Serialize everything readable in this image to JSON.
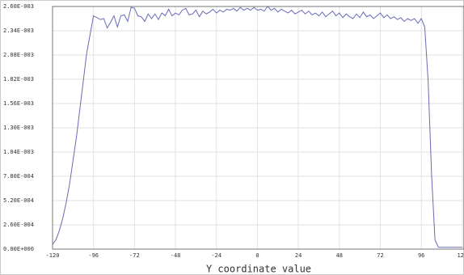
{
  "chart_data": {
    "type": "line",
    "x_label": "Y coordinate value",
    "x": [
      -120,
      -118,
      -116,
      -114,
      -112,
      -110,
      -108,
      -106,
      -104,
      -102,
      -100,
      -98,
      -96,
      -94,
      -92,
      -90,
      -88,
      -86,
      -84,
      -82,
      -80,
      -78,
      -76,
      -74,
      -72,
      -70,
      -68,
      -66,
      -64,
      -62,
      -60,
      -58,
      -56,
      -54,
      -52,
      -50,
      -48,
      -46,
      -44,
      -42,
      -40,
      -38,
      -36,
      -34,
      -32,
      -30,
      -28,
      -26,
      -24,
      -22,
      -20,
      -18,
      -16,
      -14,
      -12,
      -10,
      -8,
      -6,
      -4,
      -2,
      0,
      2,
      4,
      6,
      8,
      10,
      12,
      14,
      16,
      18,
      20,
      22,
      24,
      26,
      28,
      30,
      32,
      34,
      36,
      38,
      40,
      42,
      44,
      46,
      48,
      50,
      52,
      54,
      56,
      58,
      60,
      62,
      64,
      66,
      68,
      70,
      72,
      74,
      76,
      78,
      80,
      82,
      84,
      86,
      88,
      90,
      92,
      94,
      96,
      98,
      100,
      102,
      104,
      106,
      108,
      110,
      112,
      114,
      116,
      118,
      120
    ],
    "values": [
      5e-05,
      0.0001,
      0.0002,
      0.00033,
      0.0005,
      0.0007,
      0.00095,
      0.0012,
      0.0015,
      0.0018,
      0.0021,
      0.0023,
      0.0025,
      0.00248,
      0.00246,
      0.00247,
      0.00237,
      0.00243,
      0.0025,
      0.00238,
      0.0025,
      0.00251,
      0.00244,
      0.00259,
      0.00258,
      0.0025,
      0.00249,
      0.00244,
      0.00252,
      0.00247,
      0.00252,
      0.00246,
      0.00253,
      0.0025,
      0.00257,
      0.0025,
      0.00253,
      0.00251,
      0.00256,
      0.00258,
      0.00251,
      0.00252,
      0.00256,
      0.00249,
      0.00255,
      0.00252,
      0.00254,
      0.00257,
      0.00253,
      0.00256,
      0.00254,
      0.00257,
      0.00256,
      0.00258,
      0.00255,
      0.00259,
      0.00256,
      0.00258,
      0.00256,
      0.00259,
      0.00256,
      0.00257,
      0.00255,
      0.0026,
      0.00256,
      0.00258,
      0.00254,
      0.00257,
      0.00255,
      0.00253,
      0.00256,
      0.00252,
      0.00254,
      0.00256,
      0.00252,
      0.00255,
      0.00251,
      0.00253,
      0.0025,
      0.00254,
      0.00249,
      0.00252,
      0.00255,
      0.0025,
      0.00253,
      0.00248,
      0.00252,
      0.00249,
      0.00247,
      0.00252,
      0.00248,
      0.00254,
      0.00249,
      0.00251,
      0.00247,
      0.0025,
      0.00253,
      0.00248,
      0.00251,
      0.00247,
      0.00249,
      0.00246,
      0.00248,
      0.00244,
      0.00247,
      0.00245,
      0.00247,
      0.00242,
      0.00247,
      0.00238,
      0.0018,
      0.0008,
      0.0001,
      2e-05,
      2e-05,
      2e-05,
      2e-05,
      2e-05,
      2e-05,
      2e-05,
      2e-05
    ],
    "color": "#6a6ab8",
    "xlim": [
      -120,
      121
    ],
    "xticks": [
      -120,
      -96,
      -72,
      -48,
      -24,
      0,
      24,
      48,
      72,
      96,
      120
    ],
    "ylim": [
      0,
      0.0026
    ],
    "yticks": [
      {
        "value": 0,
        "label": "0.00E+000"
      },
      {
        "value": 0.00026,
        "label": "2.60E-004"
      },
      {
        "value": 0.00052,
        "label": "5.20E-004"
      },
      {
        "value": 0.00078,
        "label": "7.80E-004"
      },
      {
        "value": 0.00104,
        "label": "1.04E-003"
      },
      {
        "value": 0.0013,
        "label": "1.30E-003"
      },
      {
        "value": 0.00156,
        "label": "1.56E-003"
      },
      {
        "value": 0.00182,
        "label": "1.82E-003"
      },
      {
        "value": 0.00208,
        "label": "2.08E-003"
      },
      {
        "value": 0.00234,
        "label": "2.34E-003"
      },
      {
        "value": 0.0026,
        "label": "2.60E-003"
      }
    ],
    "grid": true
  }
}
